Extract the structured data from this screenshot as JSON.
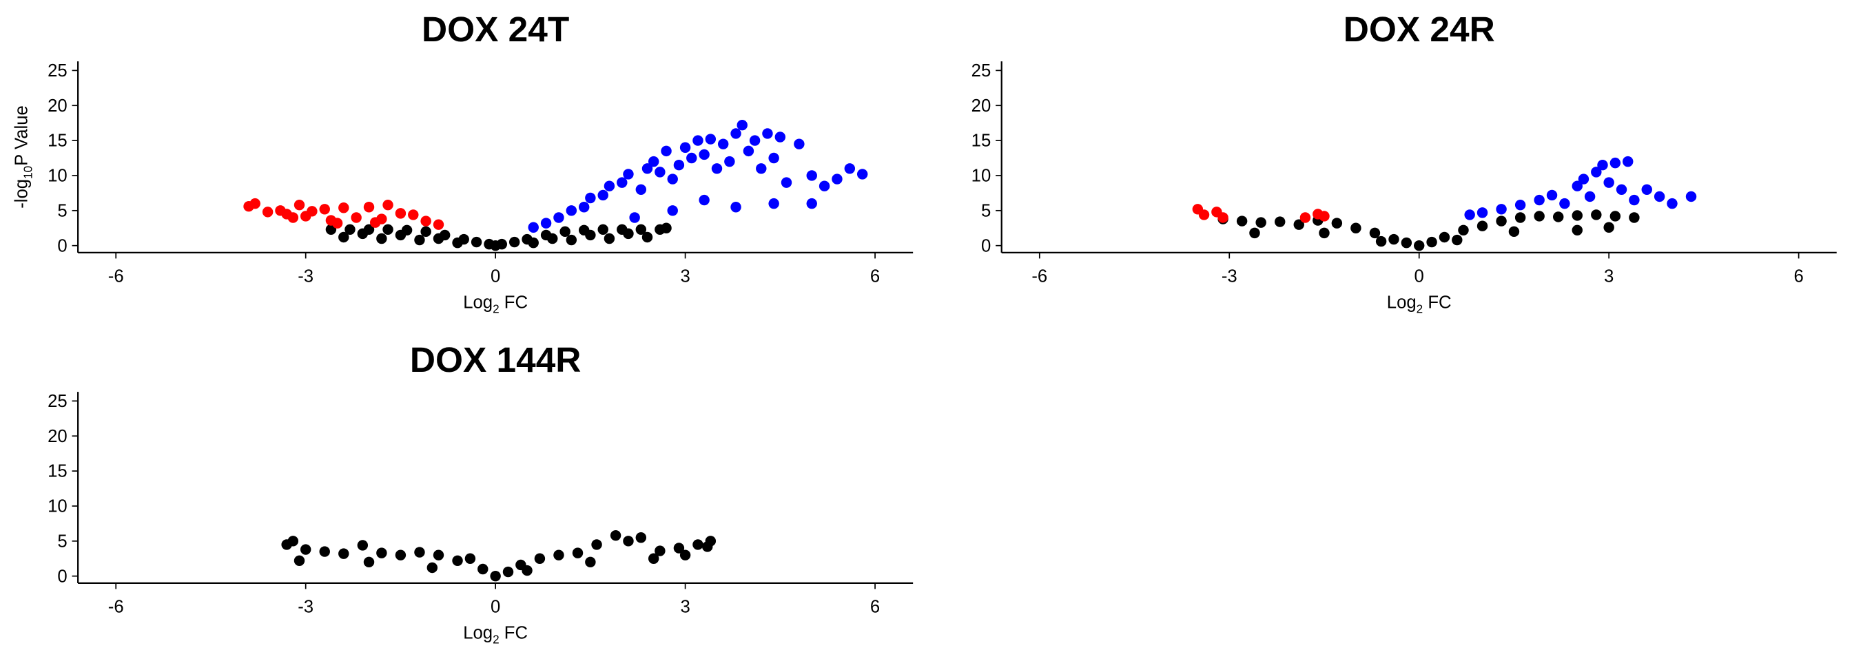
{
  "chart_data": [
    {
      "type": "scatter",
      "title": "DOX 24T",
      "x_label": {
        "text": "Log",
        "sub": "2",
        "rest": " FC"
      },
      "y_label": {
        "text": "-log",
        "sub": "10",
        "rest": "P Value"
      },
      "xlim": [
        -6.6,
        6.6
      ],
      "xticks": [
        -6,
        -3,
        0,
        3,
        6
      ],
      "ylim": [
        -1,
        26.3
      ],
      "yticks": [
        0,
        5,
        10,
        15,
        20,
        25
      ],
      "series": [
        {
          "color": "#000000",
          "x": [
            -2.6,
            -2.3,
            -2.0,
            -1.7,
            -1.4,
            -1.1,
            -0.8,
            -0.5,
            -0.3,
            -0.1,
            0,
            0.1,
            0.3,
            0.5,
            0.8,
            1.1,
            1.4,
            1.7,
            2.0,
            2.3,
            2.6,
            2.7,
            -2.4,
            -1.8,
            -1.2,
            -0.6,
            0.6,
            1.2,
            1.8,
            2.4,
            -2.1,
            -1.5,
            -0.9,
            0.9,
            1.5,
            2.1
          ],
          "values": [
            2.3,
            2.3,
            2.3,
            2.3,
            2.2,
            2.0,
            1.5,
            0.9,
            0.5,
            0.2,
            0,
            0.2,
            0.5,
            0.9,
            1.5,
            2.0,
            2.2,
            2.3,
            2.3,
            2.3,
            2.3,
            2.5,
            1.2,
            1.0,
            0.8,
            0.4,
            0.4,
            0.8,
            1.0,
            1.2,
            1.7,
            1.5,
            1.0,
            1.0,
            1.5,
            1.7
          ]
        },
        {
          "color": "#ff0000",
          "x": [
            -3.9,
            -3.8,
            -3.6,
            -3.4,
            -3.3,
            -3.1,
            -3.0,
            -2.9,
            -2.7,
            -2.6,
            -2.4,
            -2.2,
            -2.0,
            -1.8,
            -1.7,
            -1.5,
            -1.3,
            -1.1,
            -0.9,
            -3.2,
            -2.5,
            -1.9
          ],
          "values": [
            5.6,
            6.0,
            4.8,
            5.0,
            4.5,
            5.8,
            4.2,
            4.9,
            5.2,
            3.6,
            5.4,
            4.0,
            5.5,
            3.8,
            5.8,
            4.6,
            4.4,
            3.5,
            3.0,
            4.0,
            3.2,
            3.3
          ]
        },
        {
          "color": "#0000ff",
          "x": [
            0.6,
            0.8,
            1.0,
            1.2,
            1.4,
            1.5,
            1.7,
            1.8,
            2.0,
            2.1,
            2.3,
            2.4,
            2.5,
            2.6,
            2.7,
            2.8,
            2.9,
            3.0,
            3.1,
            3.2,
            3.3,
            3.4,
            3.5,
            3.6,
            3.7,
            3.8,
            3.9,
            4.0,
            4.1,
            4.2,
            4.3,
            4.4,
            4.5,
            4.6,
            4.8,
            5.0,
            5.2,
            5.4,
            5.6,
            5.8,
            2.2,
            2.8,
            3.3,
            3.8,
            4.4,
            5.0
          ],
          "values": [
            2.6,
            3.2,
            4.0,
            5.0,
            5.5,
            6.8,
            7.2,
            8.5,
            9.0,
            10.2,
            8.0,
            11.0,
            12.0,
            10.5,
            13.5,
            9.5,
            11.5,
            14.0,
            12.5,
            15.0,
            13.0,
            15.2,
            11.0,
            14.5,
            12.0,
            16.0,
            17.2,
            13.5,
            15.0,
            11.0,
            16.0,
            12.5,
            15.5,
            9.0,
            14.5,
            10.0,
            8.5,
            9.5,
            11.0,
            10.2,
            4.0,
            5.0,
            6.5,
            5.5,
            6.0,
            6.0
          ]
        }
      ]
    },
    {
      "type": "scatter",
      "title": "DOX 24R",
      "x_label": {
        "text": "Log",
        "sub": "2",
        "rest": " FC"
      },
      "xlim": [
        -6.6,
        6.6
      ],
      "xticks": [
        -6,
        -3,
        0,
        3,
        6
      ],
      "ylim": [
        -1,
        26.3
      ],
      "yticks": [
        0,
        5,
        10,
        15,
        20,
        25
      ],
      "series": [
        {
          "color": "#000000",
          "x": [
            -3.1,
            -2.8,
            -2.5,
            -2.2,
            -1.9,
            -1.6,
            -1.3,
            -1.0,
            -0.7,
            -0.4,
            -0.2,
            0,
            0.2,
            0.4,
            0.7,
            1.0,
            1.3,
            1.6,
            1.9,
            2.2,
            2.5,
            2.8,
            3.1,
            3.4,
            -2.6,
            -1.5,
            -0.6,
            0.6,
            1.5,
            2.5,
            3.0
          ],
          "values": [
            3.8,
            3.5,
            3.3,
            3.4,
            3.0,
            3.6,
            3.2,
            2.5,
            1.8,
            0.9,
            0.4,
            0,
            0.5,
            1.2,
            2.2,
            2.8,
            3.5,
            4.0,
            4.2,
            4.1,
            4.3,
            4.4,
            4.2,
            4.0,
            1.8,
            1.8,
            0.6,
            0.8,
            2.0,
            2.2,
            2.6
          ]
        },
        {
          "color": "#ff0000",
          "x": [
            -3.5,
            -3.4,
            -3.2,
            -3.1,
            -1.8,
            -1.6,
            -1.5
          ],
          "values": [
            5.2,
            4.4,
            4.8,
            4.0,
            4.0,
            4.5,
            4.2
          ]
        },
        {
          "color": "#0000ff",
          "x": [
            1.3,
            1.6,
            1.9,
            2.1,
            2.3,
            2.5,
            2.6,
            2.7,
            2.8,
            2.9,
            3.0,
            3.1,
            3.2,
            3.3,
            3.4,
            3.6,
            3.8,
            4.0,
            4.3,
            0.8,
            1.0
          ],
          "values": [
            5.2,
            5.8,
            6.5,
            7.2,
            6.0,
            8.5,
            9.5,
            7.0,
            10.5,
            11.5,
            9.0,
            11.8,
            8.0,
            12.0,
            6.5,
            8.0,
            7.0,
            6.0,
            7.0,
            4.4,
            4.7
          ]
        }
      ]
    },
    {
      "type": "scatter",
      "title": "DOX 144R",
      "x_label": {
        "text": "Log",
        "sub": "2",
        "rest": " FC"
      },
      "xlim": [
        -6.6,
        6.6
      ],
      "xticks": [
        -6,
        -3,
        0,
        3,
        6
      ],
      "ylim": [
        -1,
        26.3
      ],
      "yticks": [
        0,
        5,
        10,
        15,
        20,
        25
      ],
      "series": [
        {
          "color": "#000000",
          "x": [
            -3.3,
            -3.2,
            -3.0,
            -2.7,
            -2.4,
            -2.1,
            -1.8,
            -1.5,
            -1.2,
            -0.9,
            -0.6,
            -0.4,
            -0.2,
            0,
            0.2,
            0.4,
            0.7,
            1.0,
            1.3,
            1.6,
            1.9,
            2.1,
            2.3,
            2.6,
            2.9,
            3.2,
            3.4,
            3.35,
            -3.1,
            -2.0,
            -1.0,
            0.5,
            1.5,
            2.5,
            3.0
          ],
          "values": [
            4.5,
            5.0,
            3.8,
            3.5,
            3.2,
            4.4,
            3.3,
            3.0,
            3.4,
            3.0,
            2.2,
            2.5,
            1.0,
            0,
            0.6,
            1.6,
            2.5,
            3.0,
            3.3,
            4.5,
            5.8,
            5.0,
            5.5,
            3.6,
            4.0,
            4.5,
            5.0,
            4.2,
            2.2,
            2.0,
            1.2,
            0.8,
            2.0,
            2.5,
            3.0
          ]
        }
      ]
    }
  ]
}
